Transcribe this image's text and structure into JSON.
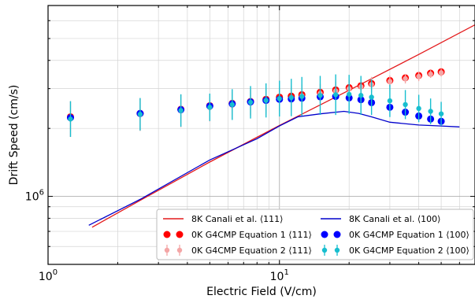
{
  "chart_data": {
    "type": "scatter",
    "xscale": "log",
    "yscale": "log",
    "xlabel": "Electric Field (V/cm)",
    "ylabel": "Drift Speed (cm/s)",
    "xlim": [
      1.0,
      70.0
    ],
    "ylim": [
      500000,
      7000000
    ],
    "grid": true,
    "legend_position": "lower-right",
    "legend_columns": 2,
    "x_tick_labels": [
      {
        "value": 1,
        "base": "10",
        "exp": "0"
      },
      {
        "value": 10,
        "base": "10",
        "exp": "1"
      }
    ],
    "y_tick_labels": [
      {
        "value": 1000000,
        "base": "10",
        "exp": "6"
      }
    ],
    "series": [
      {
        "name": "8K Canali et al. ⟨111⟩",
        "kind": "line",
        "color": "#e31a1c",
        "x": [
          1.55,
          2.5,
          5,
          10,
          20,
          40,
          70
        ],
        "y": [
          730000,
          960000,
          1420000,
          2060000,
          2950000,
          4250000,
          5750000
        ]
      },
      {
        "name": "8K Canali et al. ⟨100⟩",
        "kind": "line",
        "color": "#0000cc",
        "x": [
          1.5,
          2.5,
          5,
          8,
          10,
          12,
          15,
          19,
          22,
          25,
          30,
          40,
          50,
          60
        ],
        "y": [
          745000,
          970000,
          1450000,
          1800000,
          2050000,
          2250000,
          2320000,
          2380000,
          2330000,
          2250000,
          2130000,
          2070000,
          2050000,
          2030000
        ]
      },
      {
        "name": "0K G4CMP Equation 1 ⟨111⟩",
        "kind": "points",
        "color": "#ff0000",
        "marker_size": 4.5,
        "x": [
          1.25,
          2.5,
          3.75,
          5,
          6.25,
          7.5,
          8.75,
          10,
          11.25,
          12.5,
          15,
          17.5,
          20,
          22.5,
          25,
          30,
          35,
          40,
          45,
          50
        ],
        "y": [
          2250000,
          2330000,
          2430000,
          2520000,
          2580000,
          2630000,
          2690000,
          2750000,
          2780000,
          2820000,
          2890000,
          2960000,
          3030000,
          3090000,
          3160000,
          3260000,
          3350000,
          3430000,
          3510000,
          3560000
        ],
        "yerr": [
          0,
          0,
          0,
          0,
          0,
          0,
          0,
          0,
          0,
          0,
          0,
          0,
          0,
          0,
          0,
          0,
          0,
          0,
          0,
          0
        ]
      },
      {
        "name": "0K G4CMP Equation 2 ⟨111⟩",
        "kind": "points",
        "color": "#f4a6a6",
        "marker_size": 3.2,
        "x": [
          1.25,
          2.5,
          3.75,
          5,
          6.25,
          7.5,
          8.75,
          10,
          11.25,
          12.5,
          15,
          17.5,
          20,
          22.5,
          25,
          30,
          35,
          40,
          45,
          50
        ],
        "y": [
          2200000,
          2300000,
          2390000,
          2470000,
          2530000,
          2600000,
          2650000,
          2700000,
          2740000,
          2790000,
          2860000,
          2930000,
          3000000,
          3060000,
          3130000,
          3230000,
          3320000,
          3400000,
          3480000,
          3530000
        ],
        "yerr": [
          0.2,
          0.18,
          0.18,
          0.15,
          0.15,
          0.14,
          0.14,
          0.13,
          0.13,
          0.12,
          0.1,
          0.1,
          0.09,
          0.08,
          0.08,
          0.06,
          0.05,
          0.05,
          0.04,
          0.04
        ]
      },
      {
        "name": "0K G4CMP Equation 1 ⟨100⟩",
        "kind": "points",
        "color": "#0000ff",
        "marker_size": 4.5,
        "x": [
          1.25,
          2.5,
          3.75,
          5,
          6.25,
          7.5,
          8.75,
          10,
          11.25,
          12.5,
          15,
          17.5,
          20,
          22.5,
          25,
          30,
          35,
          40,
          45,
          50
        ],
        "y": [
          2230000,
          2330000,
          2420000,
          2510000,
          2570000,
          2620000,
          2660000,
          2690000,
          2700000,
          2720000,
          2760000,
          2770000,
          2730000,
          2680000,
          2600000,
          2480000,
          2360000,
          2270000,
          2200000,
          2150000
        ],
        "yerr": [
          0,
          0,
          0,
          0,
          0,
          0,
          0,
          0,
          0,
          0,
          0,
          0,
          0,
          0,
          0,
          0,
          0,
          0,
          0,
          0
        ]
      },
      {
        "name": "0K G4CMP Equation 2 ⟨100⟩",
        "kind": "points",
        "color": "#17becf",
        "marker_size": 3.2,
        "x": [
          1.25,
          2.5,
          3.75,
          5,
          6.25,
          7.5,
          8.75,
          10,
          11.25,
          12.5,
          15,
          17.5,
          20,
          22.5,
          25,
          30,
          35,
          40,
          45,
          50
        ],
        "y": [
          2200000,
          2310000,
          2400000,
          2480000,
          2550000,
          2610000,
          2660000,
          2710000,
          2740000,
          2770000,
          2800000,
          2820000,
          2830000,
          2800000,
          2750000,
          2650000,
          2550000,
          2450000,
          2380000,
          2320000
        ],
        "yerr": [
          0.2,
          0.18,
          0.18,
          0.15,
          0.17,
          0.18,
          0.19,
          0.2,
          0.21,
          0.22,
          0.22,
          0.23,
          0.22,
          0.22,
          0.2,
          0.18,
          0.16,
          0.15,
          0.14,
          0.13
        ]
      }
    ]
  }
}
